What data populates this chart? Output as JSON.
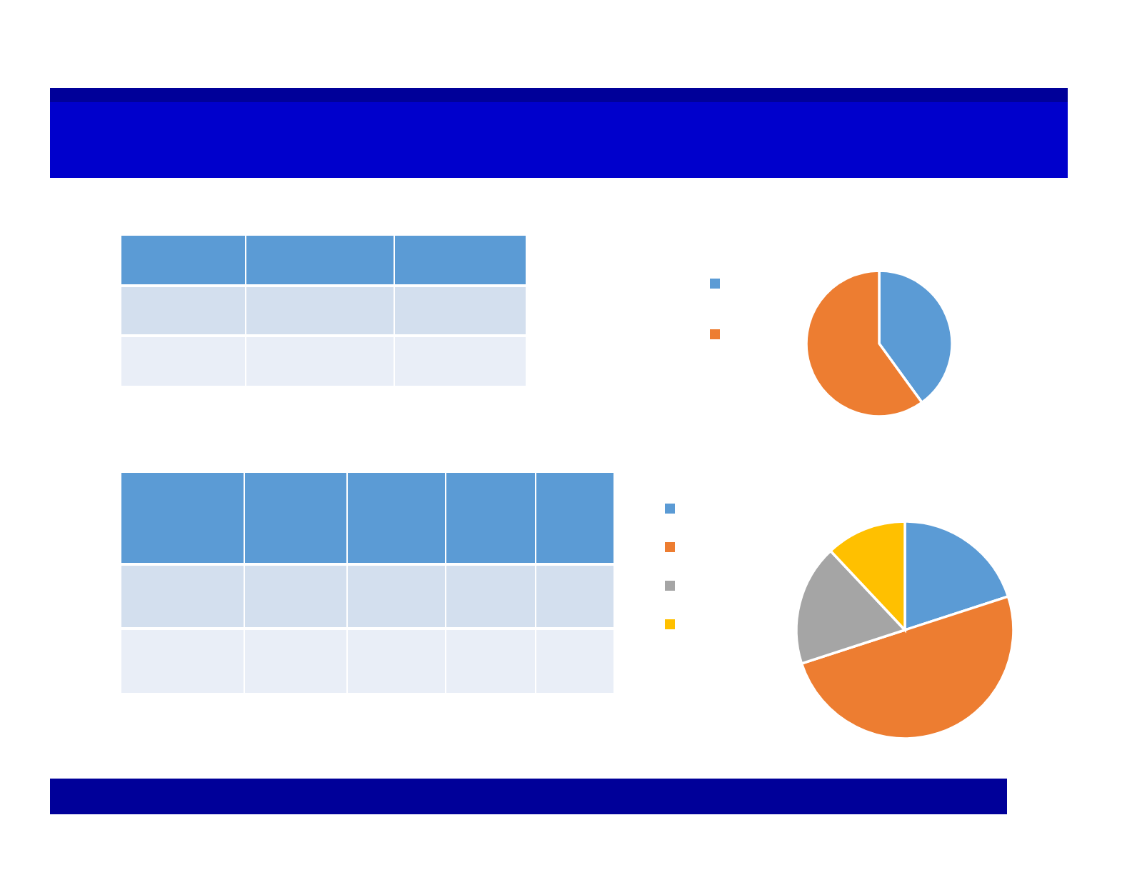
{
  "chart_data": [
    {
      "type": "pie",
      "categories": [
        null,
        null
      ],
      "values": [
        40,
        60
      ],
      "colors": [
        "#5b9bd5",
        "#ed7d31"
      ]
    },
    {
      "type": "pie",
      "categories": [
        null,
        null,
        null,
        null
      ],
      "values": [
        20,
        50,
        18,
        12
      ],
      "colors": [
        "#5b9bd5",
        "#ed7d31",
        "#a5a5a5",
        "#ffc000"
      ]
    }
  ]
}
